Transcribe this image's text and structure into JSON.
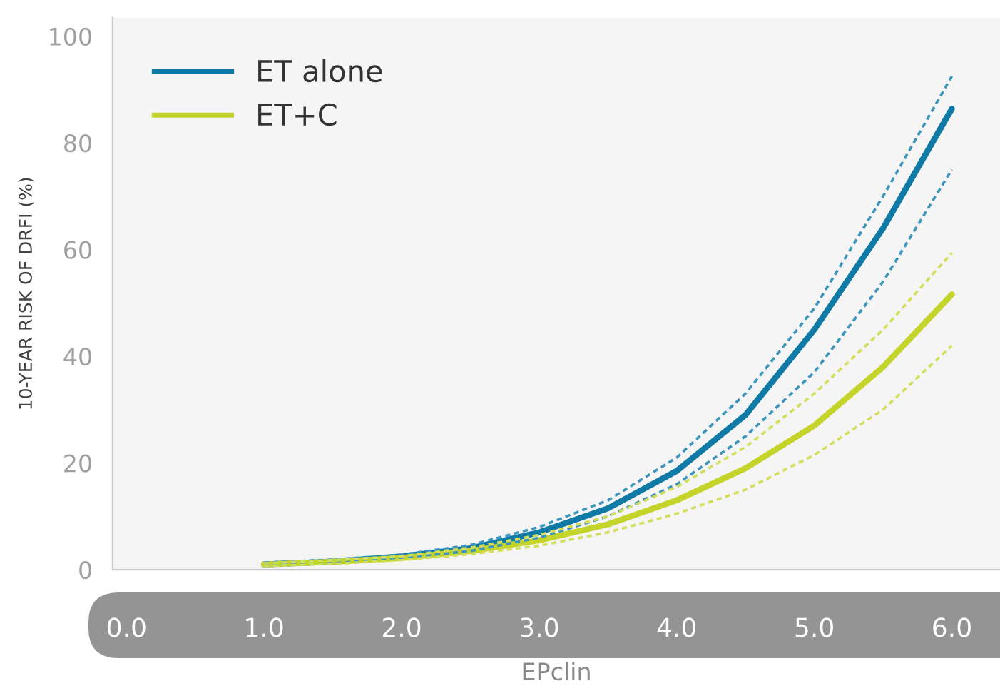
{
  "chart_data": {
    "type": "line",
    "xlabel": "EPclin",
    "ylabel": "10-YEAR RISK OF DRFI (%)",
    "x": [
      1.0,
      1.5,
      2.0,
      2.5,
      3.0,
      3.5,
      4.0,
      4.5,
      5.0,
      5.5,
      6.0
    ],
    "xlim": [
      -0.1,
      6.35
    ],
    "ylim": [
      0,
      103.5
    ],
    "xticks": [
      {
        "value": 0,
        "label": "0.0"
      },
      {
        "value": 1,
        "label": "1.0"
      },
      {
        "value": 2,
        "label": "2.0"
      },
      {
        "value": 3,
        "label": "3.0"
      },
      {
        "value": 4,
        "label": "4.0"
      },
      {
        "value": 5,
        "label": "5.0"
      },
      {
        "value": 6,
        "label": "6.0"
      }
    ],
    "yticks": [
      0,
      20,
      40,
      60,
      80,
      100
    ],
    "grid": false,
    "legend": "top left",
    "marker": "none",
    "line_style": "solid",
    "series": [
      {
        "name": "ET alone",
        "color": "#0f7aa6",
        "values": [
          1,
          1.5,
          2.5,
          4,
          7,
          11.5,
          18.5,
          29,
          45,
          64,
          86.4
        ]
      },
      {
        "name": "ET+C",
        "color": "#c4d42a",
        "values": [
          1,
          1.5,
          2.2,
          3.5,
          5.5,
          8.5,
          13,
          19,
          27,
          38,
          51.6
        ]
      },
      {
        "color": "#3b95bd",
        "line_style": "dashed",
        "values": [
          0.8,
          1.2,
          2.2,
          3.5,
          6,
          10,
          16,
          25,
          37,
          54,
          75
        ]
      },
      {
        "color": "#3b95bd",
        "line_style": "dashed",
        "values": [
          1.3,
          1.9,
          2.8,
          4.6,
          8,
          13,
          21,
          33,
          49,
          70,
          92.5
        ]
      },
      {
        "color": "#d3df5c",
        "line_style": "dashed",
        "values": [
          0.7,
          1.1,
          1.8,
          2.9,
          4.5,
          7,
          10.5,
          15,
          21.5,
          30,
          42
        ]
      },
      {
        "color": "#d3df5c",
        "line_style": "dashed",
        "values": [
          1.2,
          1.8,
          2.5,
          4.1,
          6.5,
          10,
          15.5,
          23,
          33,
          45,
          59.4
        ]
      }
    ]
  }
}
